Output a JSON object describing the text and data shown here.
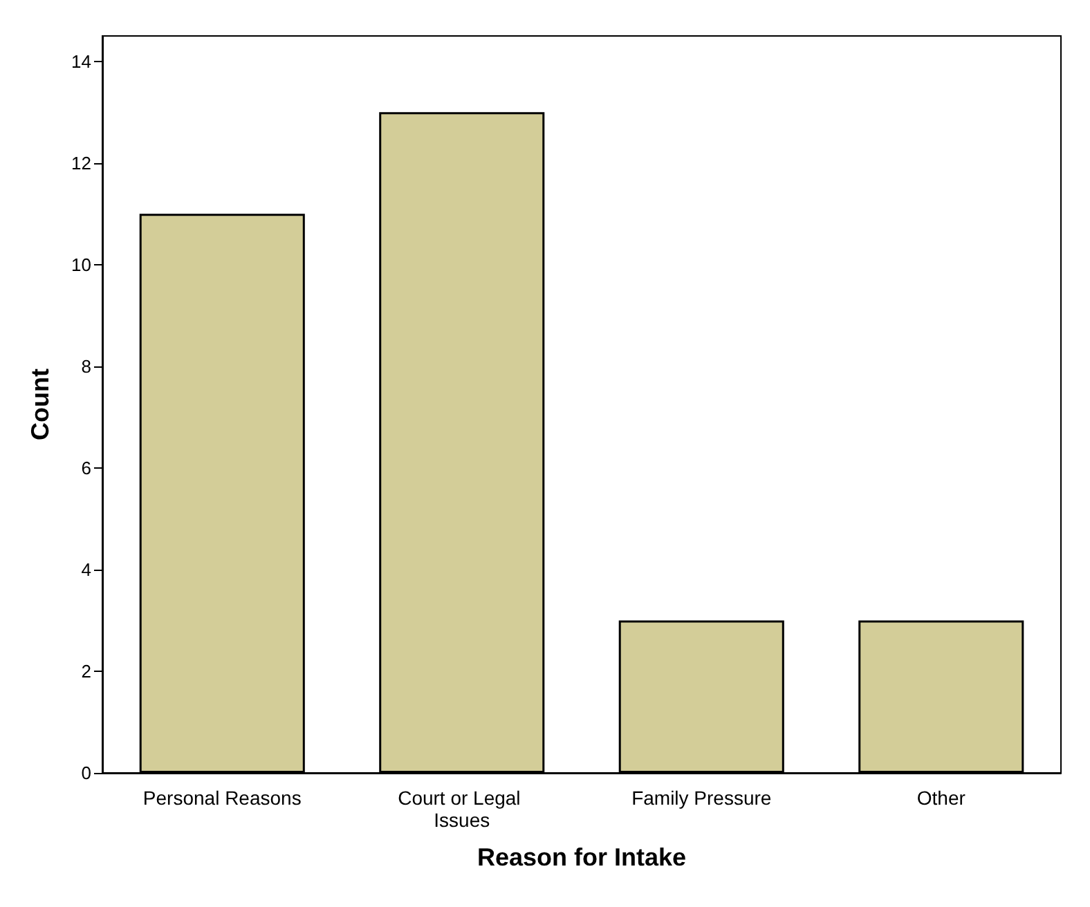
{
  "chart_data": {
    "type": "bar",
    "xlabel": "Reason for Intake",
    "ylabel": "Count",
    "categories": [
      "Personal Reasons",
      "Court or Legal Issues",
      "Family Pressure",
      "Other"
    ],
    "values": [
      11,
      13,
      3,
      3
    ],
    "color": "#d3cd98",
    "ylim": [
      0,
      14.5
    ],
    "yticks": [
      0,
      2,
      4,
      6,
      8,
      10,
      12,
      14
    ],
    "grid": false
  }
}
